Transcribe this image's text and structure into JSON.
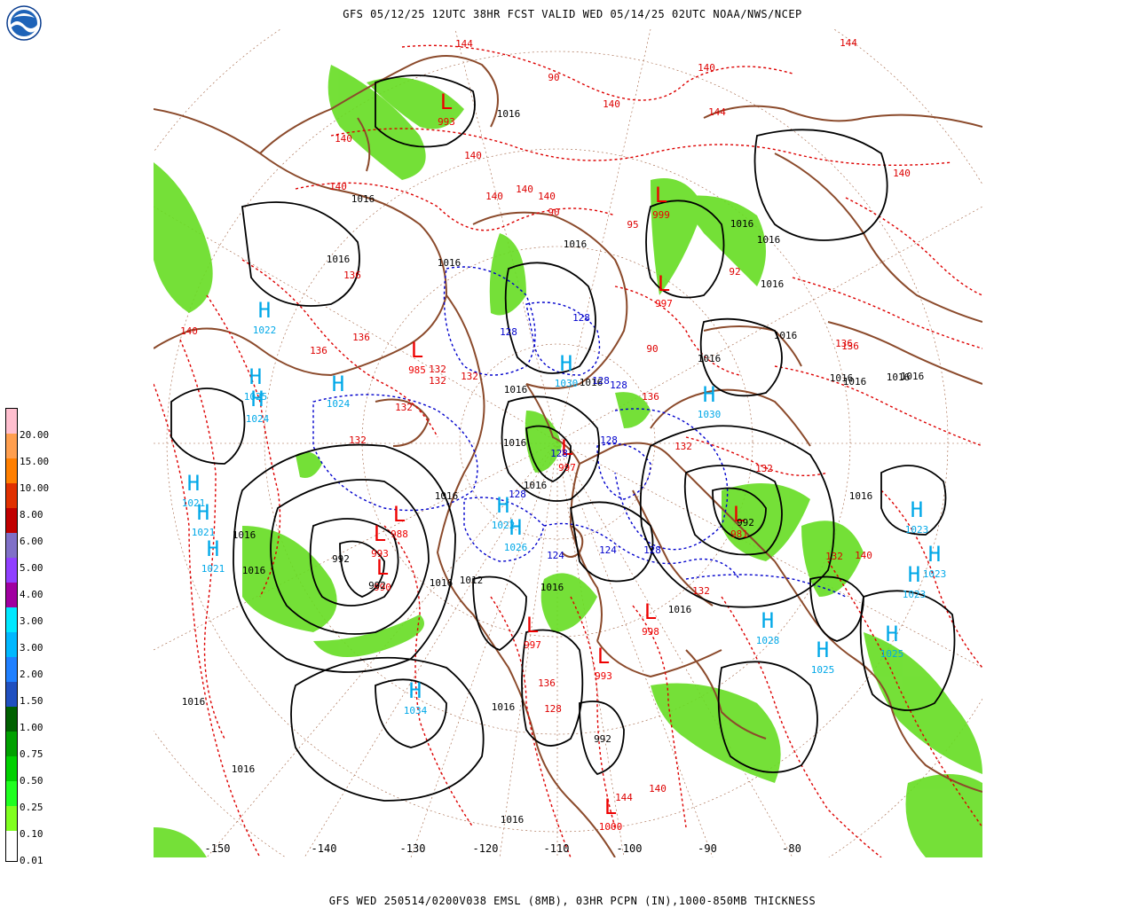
{
  "header": {
    "title": "GFS 05/12/25 12UTC 38HR FCST VALID WED 05/14/25 02UTC NOAA/NWS/NCEP",
    "logo_text": "NOAA"
  },
  "footer": {
    "caption": "GFS WED 250514/0200V038 EMSL (8MB), 03HR PCPN (IN),1000-850MB THICKNESS"
  },
  "colors": {
    "coast": "#8b4a2b",
    "isobar": "#000000",
    "thickness_warm": "#dd0000",
    "thickness_cold": "#0000cc",
    "precip": "#66dd22",
    "high_center": "#00a8e8",
    "low_center": "#ee0000"
  },
  "legend": {
    "unit": "IN",
    "items": [
      {
        "label": "20.00",
        "color": "#ffbfcf"
      },
      {
        "label": "15.00",
        "color": "#ff9f4f"
      },
      {
        "label": "10.00",
        "color": "#ff7f00"
      },
      {
        "label": "8.00",
        "color": "#e03000"
      },
      {
        "label": "6.00",
        "color": "#c00000"
      },
      {
        "label": "5.00",
        "color": "#8070c8"
      },
      {
        "label": "4.00",
        "color": "#9040ff"
      },
      {
        "label": "3.00",
        "color": "#a000a0"
      },
      {
        "label": "3.00",
        "color": "#00e8ff"
      },
      {
        "label": "2.00",
        "color": "#00b8ff"
      },
      {
        "label": "1.50",
        "color": "#2080ff"
      },
      {
        "label": "1.00",
        "color": "#2050c0"
      },
      {
        "label": "0.75",
        "color": "#006000"
      },
      {
        "label": "0.50",
        "color": "#00a000"
      },
      {
        "label": "0.25",
        "color": "#00d000"
      },
      {
        "label": "0.10",
        "color": "#20ff20"
      },
      {
        "label": "0.01",
        "color": "#80ff20"
      },
      {
        "label": "",
        "color": "#ffffff"
      }
    ]
  },
  "longitude_labels": [
    "-150",
    "-140",
    "-130",
    "-120",
    "-110",
    "-100",
    "-90",
    "-80"
  ],
  "highs": [
    {
      "label": "H",
      "value": "1022"
    },
    {
      "label": "H",
      "value": "1025"
    },
    {
      "label": "H",
      "value": "1024"
    },
    {
      "label": "H",
      "value": "1024"
    },
    {
      "label": "H",
      "value": "1030"
    },
    {
      "label": "H",
      "value": "1021"
    },
    {
      "label": "H",
      "value": "1021"
    },
    {
      "label": "H",
      "value": "1021"
    },
    {
      "label": "H",
      "value": "1034"
    },
    {
      "label": "H",
      "value": "1028"
    },
    {
      "label": "H",
      "value": "1025"
    },
    {
      "label": "H",
      "value": "1023"
    },
    {
      "label": "H",
      "value": "1023"
    },
    {
      "label": "H",
      "value": "1023"
    },
    {
      "label": "H",
      "value": "1025"
    },
    {
      "label": "H",
      "value": "1030"
    },
    {
      "label": "H",
      "value": "1022"
    },
    {
      "label": "H",
      "value": "1026"
    }
  ],
  "lows": [
    {
      "label": "L",
      "value": "993"
    },
    {
      "label": "L",
      "value": "999"
    },
    {
      "label": "L",
      "value": "997"
    },
    {
      "label": "L",
      "value": "985"
    },
    {
      "label": "L",
      "value": "988"
    },
    {
      "label": "L",
      "value": "993"
    },
    {
      "label": "L",
      "value": "990"
    },
    {
      "label": "L",
      "value": "997"
    },
    {
      "label": "L",
      "value": "998"
    },
    {
      "label": "L",
      "value": "993"
    },
    {
      "label": "L",
      "value": "981"
    },
    {
      "label": "L",
      "value": "1000"
    },
    {
      "label": "L",
      "value": "997"
    }
  ],
  "isobar_labels": [
    "1016",
    "1016",
    "1016",
    "1016",
    "1016",
    "1016",
    "1016",
    "1016",
    "1016",
    "1016",
    "1016",
    "1016",
    "1016",
    "1016",
    "1016",
    "1016",
    "1016",
    "1016",
    "1016",
    "1016",
    "1016",
    "1016",
    "1016",
    "1016",
    "1016",
    "1016",
    "1016",
    "992",
    "992",
    "992",
    "992",
    "1012",
    "1016",
    "1016"
  ],
  "thickness_labels_warm": [
    "144",
    "144",
    "144",
    "140",
    "140",
    "140",
    "140",
    "140",
    "140",
    "140",
    "140",
    "140",
    "140",
    "136",
    "136",
    "136",
    "136",
    "136",
    "136",
    "136",
    "132",
    "132",
    "132",
    "132",
    "132",
    "132",
    "132",
    "132",
    "132",
    "128",
    "144",
    "140",
    "140",
    "90",
    "90",
    "90",
    "92",
    "95"
  ],
  "thickness_labels_cold": [
    "128",
    "128",
    "128",
    "128",
    "128",
    "128",
    "128",
    "124",
    "124",
    "128"
  ]
}
